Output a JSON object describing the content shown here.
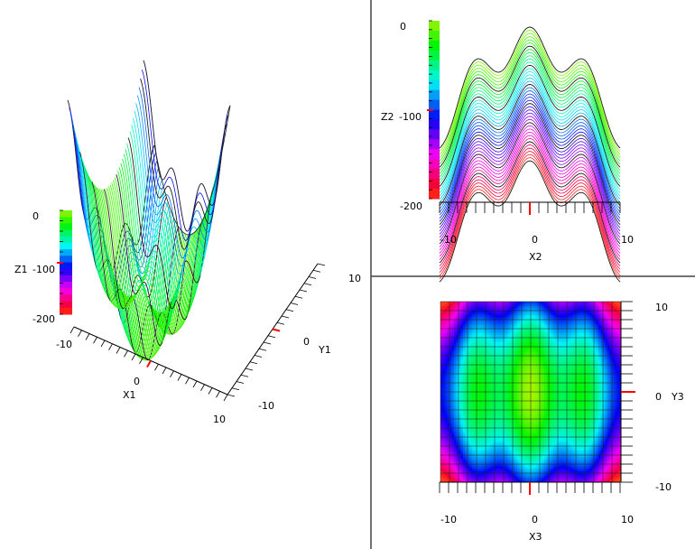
{
  "chart_data": [
    {
      "type": "surface-3d",
      "zlabel": "Z1",
      "xlabel": "X1",
      "ylabel": "Y1",
      "z_ticks": [
        "0",
        "-100",
        "-200"
      ],
      "x_ticks": [
        "-10",
        "0",
        "10"
      ],
      "y_ticks": [
        "-10",
        "0",
        "10"
      ],
      "xlim": [
        -10,
        10
      ],
      "ylim": [
        -10,
        10
      ],
      "zlim": [
        -200,
        0
      ],
      "function": "z = -(x^2+y^2) + 20*cos(x) - 20",
      "colormap": "hsv-rainbow"
    },
    {
      "type": "line-profile",
      "ylabel": "Z2",
      "xlabel": "X2",
      "y_ticks": [
        "0",
        "-100",
        "-200"
      ],
      "x_ticks": [
        "-10",
        "0",
        "10"
      ],
      "xlim": [
        -10,
        10
      ],
      "ylim": [
        -200,
        0
      ],
      "colormap": "hsv-rainbow"
    },
    {
      "type": "heatmap",
      "xlabel": "X3",
      "ylabel": "Y3",
      "x_ticks": [
        "-10",
        "0",
        "10"
      ],
      "y_ticks": [
        "10",
        "0",
        "-10"
      ],
      "xlim": [
        -10,
        10
      ],
      "ylim": [
        -10,
        10
      ],
      "colormap": "hsv-rainbow"
    }
  ]
}
